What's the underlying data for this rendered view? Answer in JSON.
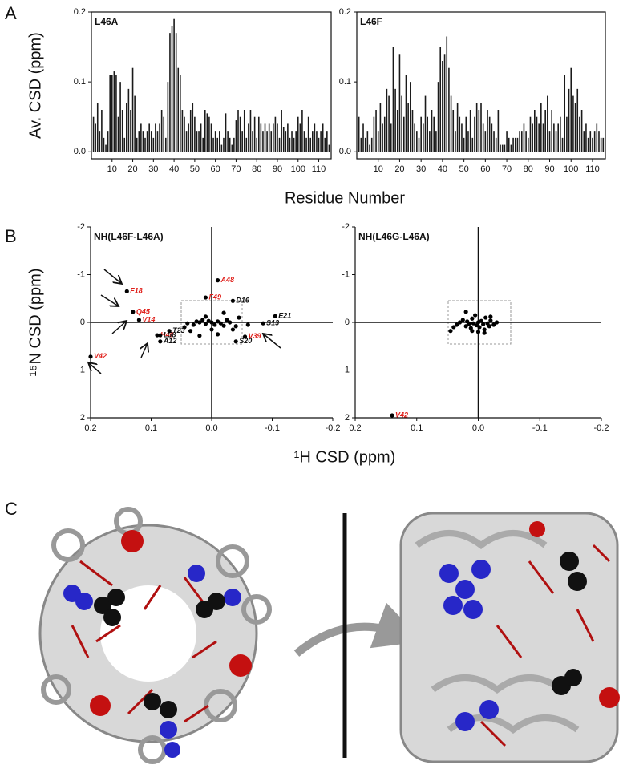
{
  "panel_labels": [
    "A",
    "B",
    "C"
  ],
  "chart_data": [
    {
      "type": "bar",
      "title": "L46A",
      "ylabel": "Av. CSD (ppm)",
      "xlabel": "Residue Number",
      "color": "#1a1a1a",
      "x": [
        1,
        2,
        3,
        4,
        5,
        6,
        7,
        8,
        9,
        10,
        11,
        12,
        13,
        14,
        15,
        16,
        17,
        18,
        19,
        20,
        21,
        22,
        23,
        24,
        25,
        26,
        27,
        28,
        29,
        30,
        31,
        32,
        33,
        34,
        35,
        36,
        37,
        38,
        39,
        40,
        41,
        42,
        43,
        44,
        45,
        46,
        47,
        48,
        49,
        50,
        51,
        52,
        53,
        54,
        55,
        56,
        57,
        58,
        59,
        60,
        61,
        62,
        63,
        64,
        65,
        66,
        67,
        68,
        69,
        70,
        71,
        72,
        73,
        74,
        75,
        76,
        77,
        78,
        79,
        80,
        81,
        82,
        83,
        84,
        85,
        86,
        87,
        88,
        89,
        90,
        91,
        92,
        93,
        94,
        95,
        96,
        97,
        98,
        99,
        100,
        101,
        102,
        103,
        104,
        105,
        106,
        107,
        108,
        109,
        110,
        111,
        112,
        113,
        114,
        115
      ],
      "values": [
        0.05,
        0.04,
        0.07,
        0.03,
        0.06,
        0.02,
        0.01,
        0.03,
        0.11,
        0.11,
        0.115,
        0.11,
        0.05,
        0.1,
        0.06,
        0.02,
        0.07,
        0.09,
        0.06,
        0.12,
        0.08,
        0.02,
        0.03,
        0.04,
        0.03,
        0.02,
        0.03,
        0.04,
        0.03,
        0.02,
        0.04,
        0.03,
        0.04,
        0.06,
        0.05,
        0.02,
        0.1,
        0.17,
        0.18,
        0.19,
        0.17,
        0.12,
        0.11,
        0.06,
        0.05,
        0.03,
        0.04,
        0.06,
        0.07,
        0.05,
        0.03,
        0.03,
        0.04,
        0.02,
        0.06,
        0.055,
        0.05,
        0.04,
        0.02,
        0.03,
        0.02,
        0.03,
        0.01,
        0.02,
        0.055,
        0.03,
        0.02,
        0.01,
        0.02,
        0.045,
        0.06,
        0.05,
        0.03,
        0.06,
        0.02,
        0.04,
        0.06,
        0.03,
        0.05,
        0.02,
        0.05,
        0.04,
        0.03,
        0.04,
        0.03,
        0.04,
        0.03,
        0.04,
        0.05,
        0.04,
        0.02,
        0.06,
        0.035,
        0.03,
        0.04,
        0.02,
        0.03,
        0.02,
        0.03,
        0.05,
        0.04,
        0.06,
        0.03,
        0.02,
        0.05,
        0.02,
        0.03,
        0.04,
        0.03,
        0.02,
        0.03,
        0.04,
        0.02,
        0.03,
        0.01
      ],
      "xlim": [
        0,
        116
      ],
      "xticks": [
        10,
        20,
        30,
        40,
        50,
        60,
        70,
        80,
        90,
        100,
        110
      ],
      "ylim": [
        -0.01,
        0.2
      ],
      "yticks": [
        {
          "value": 0,
          "label": "0.0"
        },
        0.1,
        0.2
      ]
    },
    {
      "type": "bar",
      "title": "L46F",
      "color": "#1a1a1a",
      "x": [
        1,
        2,
        3,
        4,
        5,
        6,
        7,
        8,
        9,
        10,
        11,
        12,
        13,
        14,
        15,
        16,
        17,
        18,
        19,
        20,
        21,
        22,
        23,
        24,
        25,
        26,
        27,
        28,
        29,
        30,
        31,
        32,
        33,
        34,
        35,
        36,
        37,
        38,
        39,
        40,
        41,
        42,
        43,
        44,
        45,
        46,
        47,
        48,
        49,
        50,
        51,
        52,
        53,
        54,
        55,
        56,
        57,
        58,
        59,
        60,
        61,
        62,
        63,
        64,
        65,
        66,
        67,
        68,
        69,
        70,
        71,
        72,
        73,
        74,
        75,
        76,
        77,
        78,
        79,
        80,
        81,
        82,
        83,
        84,
        85,
        86,
        87,
        88,
        89,
        90,
        91,
        92,
        93,
        94,
        95,
        96,
        97,
        98,
        99,
        100,
        101,
        102,
        103,
        104,
        105,
        106,
        107,
        108,
        109,
        110,
        111,
        112,
        113,
        114,
        115
      ],
      "values": [
        0.05,
        0.02,
        0.04,
        0.02,
        0.03,
        0.01,
        0.02,
        0.05,
        0.06,
        0.03,
        0.07,
        0.04,
        0.05,
        0.09,
        0.08,
        0.04,
        0.15,
        0.09,
        0.06,
        0.14,
        0.08,
        0.05,
        0.11,
        0.07,
        0.1,
        0.06,
        0.04,
        0.03,
        0.02,
        0.05,
        0.04,
        0.08,
        0.05,
        0.03,
        0.06,
        0.05,
        0.03,
        0.1,
        0.15,
        0.13,
        0.14,
        0.165,
        0.12,
        0.08,
        0.06,
        0.03,
        0.07,
        0.05,
        0.04,
        0.02,
        0.05,
        0.03,
        0.06,
        0.02,
        0.05,
        0.07,
        0.06,
        0.07,
        0.04,
        0.03,
        0.06,
        0.05,
        0.04,
        0.03,
        0.02,
        0.06,
        0.01,
        0.01,
        0.01,
        0.03,
        0.02,
        0.01,
        0.02,
        0.02,
        0.02,
        0.03,
        0.03,
        0.04,
        0.03,
        0.02,
        0.05,
        0.04,
        0.06,
        0.05,
        0.04,
        0.07,
        0.04,
        0.06,
        0.08,
        0.03,
        0.06,
        0.04,
        0.03,
        0.04,
        0.05,
        0.02,
        0.11,
        0.05,
        0.09,
        0.12,
        0.08,
        0.07,
        0.09,
        0.05,
        0.06,
        0.03,
        0.04,
        0.02,
        0.03,
        0.02,
        0.03,
        0.04,
        0.03,
        0.02,
        0.02
      ],
      "xlim": [
        0,
        116
      ],
      "xticks": [
        10,
        20,
        30,
        40,
        50,
        60,
        70,
        80,
        90,
        100,
        110
      ],
      "ylim": [
        -0.01,
        0.2
      ],
      "yticks": [
        {
          "value": 0,
          "label": "0.0"
        },
        0.1,
        0.2
      ]
    },
    {
      "type": "scatter",
      "title": "NH(L46F-L46A)",
      "ylabel": "¹⁵N CSD (ppm)",
      "xlabel": "¹H CSD (ppm)",
      "color": "#000000",
      "x": [
        0.14,
        0.13,
        0.12,
        0.09,
        0.085,
        0.07,
        0.085,
        0.2,
        -0.01,
        0.01,
        -0.035,
        -0.105,
        -0.085,
        -0.055,
        -0.04,
        0.04,
        0.03,
        0.025,
        0.02,
        0.015,
        0.01,
        0.005,
        0.0,
        -0.005,
        -0.01,
        -0.015,
        -0.02,
        -0.025,
        -0.03,
        -0.035,
        -0.04,
        -0.045,
        0.035,
        0.02,
        0.0,
        -0.01,
        0.045,
        -0.02,
        0.01,
        -0.06
      ],
      "values": [
        -0.65,
        -0.22,
        -0.05,
        0.27,
        0.27,
        0.18,
        0.4,
        0.72,
        -0.88,
        -0.52,
        -0.45,
        -0.13,
        0.02,
        0.3,
        0.4,
        0.02,
        0.05,
        -0.02,
        0.0,
        -0.05,
        0.03,
        -0.03,
        0.0,
        0.05,
        -0.02,
        0.02,
        0.07,
        -0.05,
        0.0,
        0.15,
        0.08,
        -0.1,
        0.18,
        0.28,
        0.15,
        0.25,
        0.1,
        -0.2,
        -0.12,
        0.05
      ],
      "labels": [
        "F18",
        "Q45",
        "V14",
        "H40",
        "L58",
        "T23",
        "A12",
        "V42",
        "A48",
        "F49",
        "D16",
        "E21",
        "S13",
        "V39",
        "S20",
        null,
        null,
        null,
        null,
        null,
        null,
        null,
        null,
        null,
        null,
        null,
        null,
        null,
        null,
        null,
        null,
        null,
        null,
        null,
        null,
        null,
        null,
        null,
        null,
        null
      ],
      "label_colors": [
        "#e0201b",
        "#e0201b",
        "#e0201b",
        "#e0201b",
        "#111111",
        "#111111",
        "#111111",
        "#e0201b",
        "#e0201b",
        "#e0201b",
        "#111111",
        "#111111",
        "#111111",
        "#e0201b",
        "#111111",
        null,
        null,
        null,
        null,
        null,
        null,
        null,
        null,
        null,
        null,
        null,
        null,
        null,
        null,
        null,
        null,
        null,
        null,
        null,
        null,
        null,
        null,
        null,
        null,
        null
      ],
      "xlim": [
        0.2,
        -0.2
      ],
      "xticks": [
        0.2,
        0.1,
        {
          "value": 0,
          "label": "0.0"
        },
        -0.1,
        -0.2
      ],
      "ylim": [
        2,
        -2
      ],
      "yticks": [
        -2,
        -1,
        0,
        1,
        2
      ]
    },
    {
      "type": "scatter",
      "title": "NH(L46G-L46A)",
      "color": "#000000",
      "x": [
        0.14,
        0.045,
        0.04,
        0.035,
        0.03,
        0.025,
        0.02,
        0.018,
        0.015,
        0.012,
        0.01,
        0.008,
        0.005,
        0.003,
        0.0,
        -0.002,
        -0.005,
        -0.008,
        -0.01,
        -0.012,
        -0.015,
        -0.018,
        -0.02,
        -0.025,
        -0.03,
        0.02,
        0.0,
        -0.01,
        0.01,
        -0.02
      ],
      "values": [
        1.95,
        0.18,
        0.1,
        0.05,
        0.0,
        -0.05,
        0.08,
        -0.02,
        0.03,
        0.12,
        -0.08,
        0.02,
        -0.15,
        0.06,
        0.0,
        0.1,
        -0.03,
        0.04,
        0.15,
        -0.1,
        0.02,
        0.08,
        -0.04,
        0.05,
        0.0,
        -0.22,
        0.2,
        0.22,
        0.18,
        -0.12
      ],
      "labels": [
        "V42",
        null,
        null,
        null,
        null,
        null,
        null,
        null,
        null,
        null,
        null,
        null,
        null,
        null,
        null,
        null,
        null,
        null,
        null,
        null,
        null,
        null,
        null,
        null,
        null,
        null,
        null,
        null,
        null,
        null
      ],
      "label_colors": [
        "#e0201b",
        null,
        null,
        null,
        null,
        null,
        null,
        null,
        null,
        null,
        null,
        null,
        null,
        null,
        null,
        null,
        null,
        null,
        null,
        null,
        null,
        null,
        null,
        null,
        null,
        null,
        null,
        null,
        null,
        null
      ],
      "xlim": [
        0.2,
        -0.2
      ],
      "xticks": [
        0.2,
        0.1,
        {
          "value": 0,
          "label": "0.0"
        },
        -0.1,
        -0.2
      ],
      "ylim": [
        2,
        -2
      ],
      "yticks": [
        -2,
        -1,
        0,
        1,
        2
      ]
    }
  ]
}
